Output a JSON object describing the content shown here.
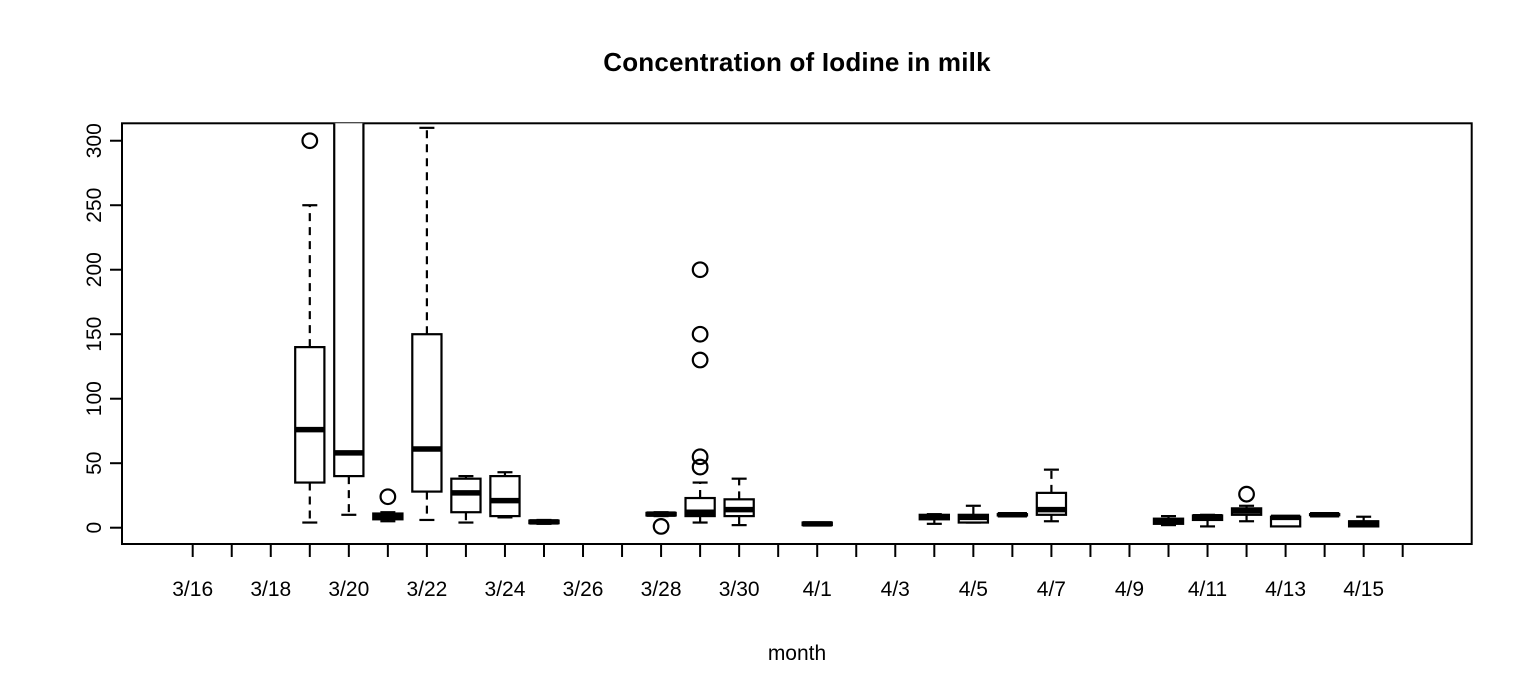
{
  "chart_data": {
    "type": "boxplot",
    "title": "Concentration of Iodine in milk",
    "xlabel": "month",
    "ylabel": "",
    "ylim": [
      -13,
      313
    ],
    "grid": false,
    "yticks": [
      0,
      50,
      100,
      150,
      200,
      250,
      300
    ],
    "xticks": [
      {
        "date": "3/16",
        "label": "3/16"
      },
      {
        "date": "3/17",
        "label": ""
      },
      {
        "date": "3/18",
        "label": "3/18"
      },
      {
        "date": "3/19",
        "label": ""
      },
      {
        "date": "3/20",
        "label": "3/20"
      },
      {
        "date": "3/21",
        "label": ""
      },
      {
        "date": "3/22",
        "label": "3/22"
      },
      {
        "date": "3/23",
        "label": ""
      },
      {
        "date": "3/24",
        "label": "3/24"
      },
      {
        "date": "3/25",
        "label": ""
      },
      {
        "date": "3/26",
        "label": "3/26"
      },
      {
        "date": "3/27",
        "label": ""
      },
      {
        "date": "3/28",
        "label": "3/28"
      },
      {
        "date": "3/29",
        "label": ""
      },
      {
        "date": "3/30",
        "label": "3/30"
      },
      {
        "date": "3/31",
        "label": ""
      },
      {
        "date": "4/1",
        "label": "4/1"
      },
      {
        "date": "4/2",
        "label": ""
      },
      {
        "date": "4/3",
        "label": "4/3"
      },
      {
        "date": "4/4",
        "label": ""
      },
      {
        "date": "4/5",
        "label": "4/5"
      },
      {
        "date": "4/6",
        "label": ""
      },
      {
        "date": "4/7",
        "label": "4/7"
      },
      {
        "date": "4/8",
        "label": ""
      },
      {
        "date": "4/9",
        "label": "4/9"
      },
      {
        "date": "4/10",
        "label": ""
      },
      {
        "date": "4/11",
        "label": "4/11"
      },
      {
        "date": "4/12",
        "label": ""
      },
      {
        "date": "4/13",
        "label": "4/13"
      },
      {
        "date": "4/14",
        "label": ""
      },
      {
        "date": "4/15",
        "label": "4/15"
      },
      {
        "date": "4/16",
        "label": ""
      }
    ],
    "boxes": [
      {
        "date": "3/19",
        "day_index": 3,
        "whisker_low": 4,
        "q1": 35,
        "median": 76,
        "q3": 140,
        "whisker_high": 250,
        "outliers": [
          300
        ],
        "clipped_top": false
      },
      {
        "date": "3/20",
        "day_index": 4,
        "whisker_low": 10,
        "q1": 40,
        "median": 58,
        "q3": 330,
        "whisker_high": null,
        "outliers": [],
        "clipped_top": true
      },
      {
        "date": "3/21",
        "day_index": 5,
        "whisker_low": 5,
        "q1": 6.5,
        "median": 9,
        "q3": 11,
        "whisker_high": 12,
        "outliers": [
          24
        ],
        "clipped_top": false
      },
      {
        "date": "3/22",
        "day_index": 6,
        "whisker_low": 6,
        "q1": 28,
        "median": 61,
        "q3": 150,
        "whisker_high": 310,
        "outliers": [],
        "clipped_top": false
      },
      {
        "date": "3/23",
        "day_index": 7,
        "whisker_low": 4,
        "q1": 12,
        "median": 27,
        "q3": 38,
        "whisker_high": 40,
        "outliers": [],
        "clipped_top": false
      },
      {
        "date": "3/24",
        "day_index": 8,
        "whisker_low": 8,
        "q1": 9,
        "median": 21,
        "q3": 40,
        "whisker_high": 43,
        "outliers": [],
        "clipped_top": false
      },
      {
        "date": "3/25",
        "day_index": 9,
        "whisker_low": 3,
        "q1": 3.5,
        "median": 4.5,
        "q3": 5.5,
        "whisker_high": 6,
        "outliers": [],
        "clipped_top": false
      },
      {
        "date": "3/28",
        "day_index": 12,
        "whisker_low": 9,
        "q1": 9.5,
        "median": 10.5,
        "q3": 11.5,
        "whisker_high": 12,
        "outliers": [
          1
        ],
        "clipped_top": false
      },
      {
        "date": "3/29",
        "day_index": 13,
        "whisker_low": 4,
        "q1": 9,
        "median": 12,
        "q3": 23,
        "whisker_high": 35,
        "outliers": [
          200,
          150,
          130,
          55,
          47
        ],
        "clipped_top": false
      },
      {
        "date": "3/30",
        "day_index": 14,
        "whisker_low": 2,
        "q1": 9,
        "median": 14,
        "q3": 22,
        "whisker_high": 38,
        "outliers": [],
        "clipped_top": false
      },
      {
        "date": "4/1",
        "day_index": 16,
        "whisker_low": 2,
        "q1": 2,
        "median": 3,
        "q3": 4,
        "whisker_high": 4,
        "outliers": [],
        "clipped_top": false
      },
      {
        "date": "4/4",
        "day_index": 19,
        "whisker_low": 3,
        "q1": 6.5,
        "median": 8.5,
        "q3": 10,
        "whisker_high": 10.5,
        "outliers": [],
        "clipped_top": false
      },
      {
        "date": "4/5",
        "day_index": 20,
        "whisker_low": 4,
        "q1": 4,
        "median": 8,
        "q3": 10,
        "whisker_high": 17,
        "outliers": [],
        "clipped_top": false
      },
      {
        "date": "4/6",
        "day_index": 21,
        "whisker_low": 9,
        "q1": 9.5,
        "median": 10,
        "q3": 10.5,
        "whisker_high": 11,
        "outliers": [],
        "clipped_top": false
      },
      {
        "date": "4/7",
        "day_index": 22,
        "whisker_low": 5,
        "q1": 10,
        "median": 14,
        "q3": 27,
        "whisker_high": 45,
        "outliers": [],
        "clipped_top": false
      },
      {
        "date": "4/10",
        "day_index": 25,
        "whisker_low": 2,
        "q1": 3,
        "median": 5,
        "q3": 7,
        "whisker_high": 9,
        "outliers": [],
        "clipped_top": false
      },
      {
        "date": "4/11",
        "day_index": 26,
        "whisker_low": 1,
        "q1": 6,
        "median": 8.5,
        "q3": 9.5,
        "whisker_high": 10,
        "outliers": [],
        "clipped_top": false
      },
      {
        "date": "4/12",
        "day_index": 27,
        "whisker_low": 5,
        "q1": 10,
        "median": 13,
        "q3": 15,
        "whisker_high": 17,
        "outliers": [
          26
        ],
        "clipped_top": false
      },
      {
        "date": "4/13",
        "day_index": 28,
        "whisker_low": 1,
        "q1": 1,
        "median": 8,
        "q3": 8.5,
        "whisker_high": 8.5,
        "outliers": [],
        "clipped_top": false
      },
      {
        "date": "4/14",
        "day_index": 29,
        "whisker_low": 9.5,
        "q1": 9.7,
        "median": 10,
        "q3": 10.5,
        "whisker_high": 11,
        "outliers": [],
        "clipped_top": false
      },
      {
        "date": "4/15",
        "day_index": 30,
        "whisker_low": 1,
        "q1": 1,
        "median": 3.5,
        "q3": 5,
        "whisker_high": 8.5,
        "outliers": [],
        "clipped_top": false
      }
    ],
    "line_color": "#000000",
    "background_color": "#ffffff"
  }
}
